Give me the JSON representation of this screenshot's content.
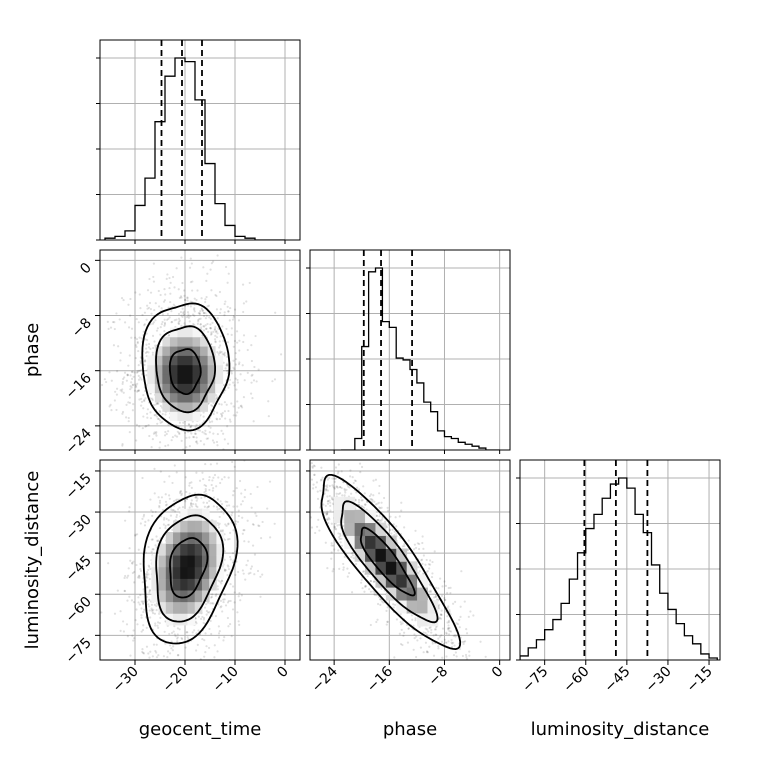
{
  "chart_data": {
    "type": "corner",
    "parameters": [
      "geocent_time",
      "phase",
      "luminosity_distance"
    ],
    "axis_labels": {
      "geocent_time": "geocent_time",
      "phase": "phase",
      "luminosity_distance": "luminosity_distance"
    },
    "ranges": {
      "geocent_time": [
        -37,
        3
      ],
      "phase": [
        -27.5,
        1.5
      ],
      "luminosity_distance": [
        -84,
        -11
      ]
    },
    "ticks": {
      "geocent_time": [
        -30,
        -20,
        -10,
        0
      ],
      "phase": [
        -24,
        -16,
        -8,
        0
      ],
      "luminosity_distance": [
        -75,
        -60,
        -45,
        -30,
        -15
      ]
    },
    "quantiles": {
      "geocent_time": [
        -24.7,
        -20.6,
        -16.6
      ],
      "phase": [
        -19.7,
        -17.2,
        -12.7
      ],
      "luminosity_distance": [
        -60.5,
        -49.0,
        -37.5
      ]
    },
    "histograms": {
      "geocent_time": {
        "bin_edges": [
          -36,
          -34,
          -32,
          -30,
          -28,
          -26,
          -24,
          -22,
          -20,
          -18,
          -16,
          -14,
          -12,
          -10,
          -8,
          -6,
          -4,
          -2,
          0
        ],
        "counts": [
          0.01,
          0.02,
          0.05,
          0.19,
          0.34,
          0.65,
          0.9,
          1.0,
          0.98,
          0.77,
          0.42,
          0.2,
          0.08,
          0.02,
          0.01,
          0.0,
          0.0,
          0.0
        ]
      },
      "phase": {
        "bin_edges": [
          -23,
          -22,
          -21,
          -20,
          -19,
          -18,
          -17,
          -16,
          -15,
          -14,
          -13,
          -12,
          -11,
          -10,
          -9,
          -8,
          -7,
          -6,
          -5,
          -4,
          -3,
          -2,
          -1,
          0
        ],
        "counts": [
          0.0,
          0.0,
          0.06,
          0.54,
          0.93,
          0.95,
          0.67,
          0.64,
          0.48,
          0.47,
          0.42,
          0.35,
          0.25,
          0.2,
          0.1,
          0.07,
          0.06,
          0.04,
          0.03,
          0.02,
          0.01,
          0.0,
          0.0
        ]
      },
      "luminosity_distance": {
        "bin_edges": [
          -84,
          -81,
          -78,
          -75,
          -72,
          -69,
          -66,
          -63,
          -60,
          -57,
          -54,
          -51,
          -48,
          -45,
          -42,
          -39,
          -36,
          -33,
          -30,
          -27,
          -24,
          -21,
          -18,
          -15,
          -12
        ],
        "counts": [
          0.02,
          0.06,
          0.1,
          0.15,
          0.2,
          0.28,
          0.4,
          0.53,
          0.65,
          0.72,
          0.8,
          0.87,
          0.9,
          0.85,
          0.72,
          0.63,
          0.47,
          0.33,
          0.25,
          0.18,
          0.12,
          0.08,
          0.03,
          0.01
        ]
      }
    },
    "joint": [
      {
        "x": "geocent_time",
        "y": "phase",
        "mean": [
          -20,
          -16.5
        ],
        "sigma": [
          4.8,
          4.3
        ],
        "rho": 0.0,
        "skew": "up",
        "level_scale": [
          0.55,
          1.05,
          1.55
        ]
      },
      {
        "x": "geocent_time",
        "y": "luminosity_distance",
        "mean": [
          -19.5,
          -50
        ],
        "sigma": [
          4.6,
          13.5
        ],
        "rho": 0.25,
        "level_scale": [
          0.7,
          1.25,
          1.75
        ]
      },
      {
        "x": "phase",
        "y": "luminosity_distance",
        "mean": [
          -16.5,
          -48
        ],
        "sigma": [
          4.8,
          15
        ],
        "rho": -0.87,
        "level_scale": [
          0.7,
          1.25,
          1.8
        ]
      }
    ],
    "style": {
      "line_color": "#000000",
      "grid_color": "#b0b0b0",
      "grid": true
    }
  }
}
